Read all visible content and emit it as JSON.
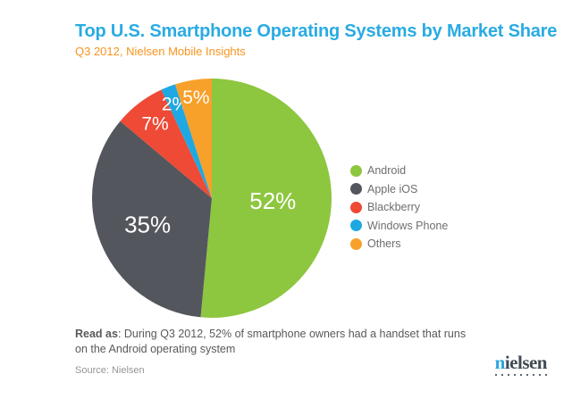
{
  "header": {
    "title": "Top U.S. Smartphone Operating Systems by Market Share",
    "subtitle": "Q3 2012, Nielsen Mobile Insights"
  },
  "chart_data": {
    "type": "pie",
    "title": "Top U.S. Smartphone Operating Systems by Market Share",
    "subtitle": "Q3 2012, Nielsen Mobile Insights",
    "unit": "percent",
    "direction": "clockwise",
    "start_angle_deg": 0,
    "legend_position": "right",
    "slices": [
      {
        "label": "Android",
        "value": 52,
        "color": "#8DC63F",
        "label_r": 0.51
      },
      {
        "label": "Apple iOS",
        "value": 35,
        "color": "#54565E",
        "label_r": 0.58
      },
      {
        "label": "Blackberry",
        "value": 7,
        "color": "#EE4A35",
        "label_r": 0.78
      },
      {
        "label": "Windows Phone",
        "value": 2,
        "color": "#1FA8E1",
        "label_r": 0.84
      },
      {
        "label": "Others",
        "value": 5,
        "color": "#F7A02A",
        "label_r": 0.85
      }
    ]
  },
  "footer": {
    "read_as_label": "Read as",
    "read_as_text": ": During Q3 2012, 52% of smartphone owners had a handset that runs on the Android operating system",
    "source": "Source: Nielsen"
  },
  "logo": {
    "first_letter": "n",
    "rest": "ielsen"
  },
  "colors": {
    "title": "#29ABE2",
    "subtitle": "#F7941E",
    "legend_text": "#6D6E71",
    "body_text": "#58595B",
    "source_text": "#939598",
    "logo_navy": "#414A55",
    "logo_blue": "#2BA6DE"
  }
}
